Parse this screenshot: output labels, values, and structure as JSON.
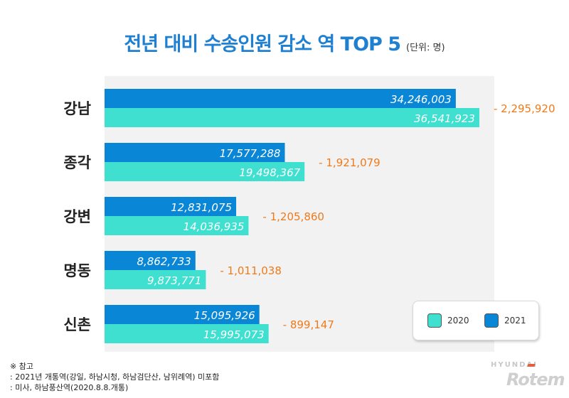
{
  "title": {
    "main": "전년 대비 수송인원 감소 역 TOP 5",
    "unit": "(단위: 명)"
  },
  "colors": {
    "y2020": "#3fe0d0",
    "y2021": "#0a86d6",
    "diff": "#f07a1a",
    "title": "#1f7fd0",
    "plot_bg": "#f2f2f2"
  },
  "chart_data": {
    "type": "bar",
    "orientation": "horizontal",
    "title": "전년 대비 수송인원 감소 역 TOP 5",
    "unit": "(단위: 명)",
    "categories": [
      "강남",
      "종각",
      "강변",
      "명동",
      "신촌"
    ],
    "series": [
      {
        "name": "2021",
        "values": [
          34246003,
          17577288,
          12831075,
          8862733,
          15095926
        ],
        "labels": [
          "34,246,003",
          "17,577,288",
          "12,831,075",
          "8,862,733",
          "15,095,926"
        ]
      },
      {
        "name": "2020",
        "values": [
          36541923,
          19498367,
          14036935,
          9873771,
          15995073
        ],
        "labels": [
          "36,541,923",
          "19,498,367",
          "14,036,935",
          "9,873,771",
          "15,995,073"
        ]
      }
    ],
    "differences": [
      "- 2,295,920",
      "- 1,921,079",
      "- 1,205,860",
      "- 1,011,038",
      "- 899,147"
    ],
    "xlim": [
      0,
      38000000
    ],
    "legend": {
      "position": "bottom-right",
      "items": [
        "2020",
        "2021"
      ]
    }
  },
  "footnote": {
    "heading": "※ 참고",
    "lines": [
      ": 2021년 개통역(강일, 하남시청, 하남검단산, 남위례역) 미포함",
      ": 미사, 하남풍산역(2020.8.8.개통)"
    ]
  },
  "logo": {
    "top": "HYUNDAI",
    "bottom": "Rotem"
  }
}
